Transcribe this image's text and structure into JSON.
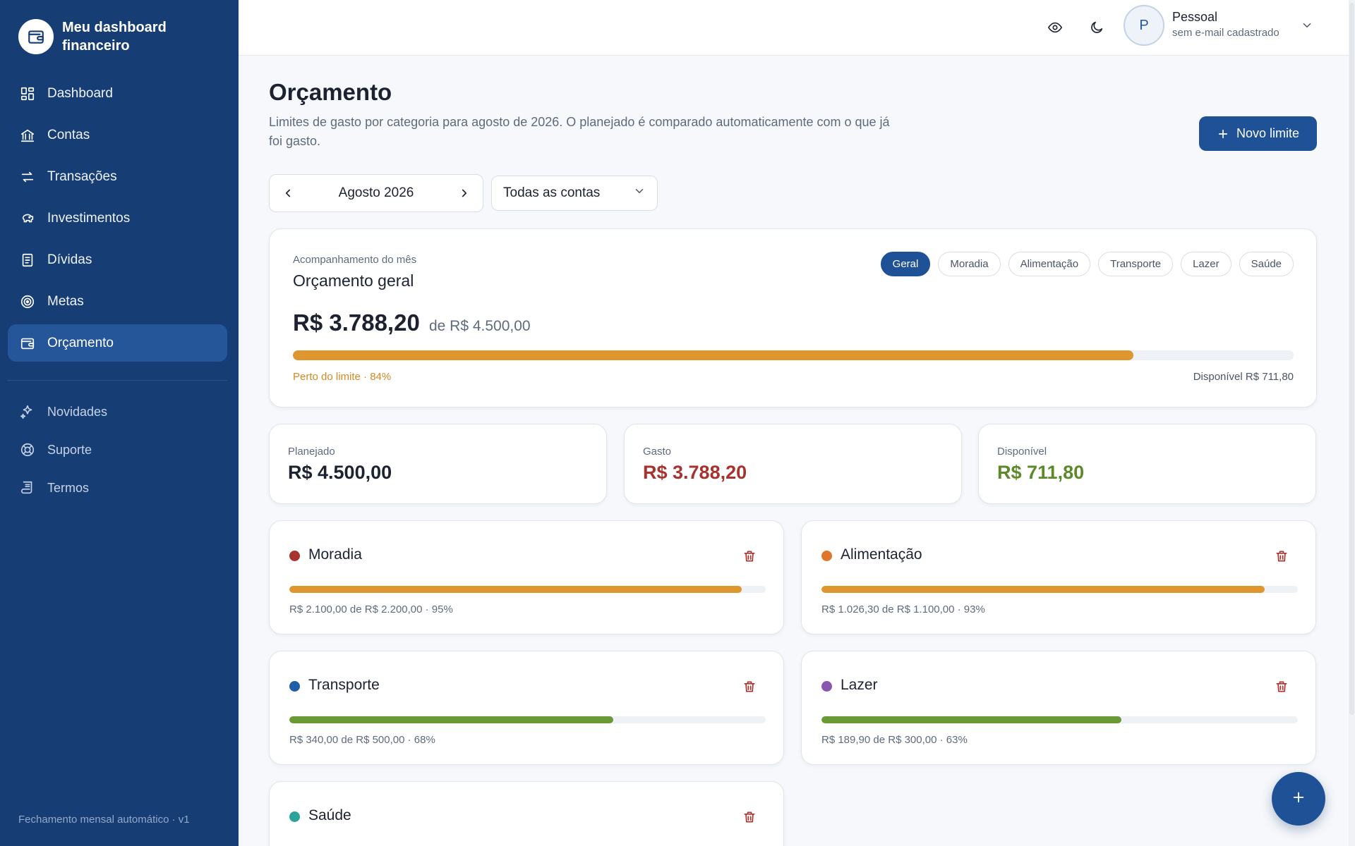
{
  "brand": {
    "title": "Meu dashboard financeiro"
  },
  "sidebar": {
    "items": [
      {
        "label": "Dashboard",
        "icon": "grid-icon"
      },
      {
        "label": "Contas",
        "icon": "bank-icon"
      },
      {
        "label": "Transações",
        "icon": "arrows-icon"
      },
      {
        "label": "Investimentos",
        "icon": "piggy-bank-icon"
      },
      {
        "label": "Dívidas",
        "icon": "receipt-icon"
      },
      {
        "label": "Metas",
        "icon": "target-icon"
      },
      {
        "label": "Orçamento",
        "icon": "wallet-icon",
        "active": true
      }
    ],
    "secondary": [
      {
        "label": "Novidades",
        "icon": "sparkles-icon"
      },
      {
        "label": "Suporte",
        "icon": "lifebuoy-icon"
      },
      {
        "label": "Termos",
        "icon": "scroll-icon"
      }
    ],
    "footer": "Fechamento mensal automático · v1"
  },
  "user": {
    "initial": "P",
    "name": "Pessoal",
    "email": "sem e-mail cadastrado"
  },
  "header": {
    "title": "Orçamento",
    "subtitle": "Limites de gasto por categoria para agosto de 2026. O planejado é comparado automaticamente com o que já foi gasto.",
    "new_button": "Novo limite"
  },
  "filters": {
    "month": "Agosto 2026",
    "account": "Todas as contas"
  },
  "overview": {
    "kicker": "Acompanhamento do mês",
    "title": "Orçamento geral",
    "chips": [
      "Geral",
      "Moradia",
      "Alimentação",
      "Transporte",
      "Lazer",
      "Saúde"
    ],
    "active_chip": "Geral",
    "spent": "R$ 3.788,20",
    "of_planned": "de R$ 4.500,00",
    "progress": 0.84,
    "status": "Perto do limite · 84%",
    "available": "Disponível R$ 711,80",
    "bar_color": "#e0962f"
  },
  "summary": [
    {
      "label": "Planejado",
      "value": "R$ 4.500,00",
      "color": "#1c2230"
    },
    {
      "label": "Gasto",
      "value": "R$ 3.788,20",
      "color": "#a8322d"
    },
    {
      "label": "Disponível",
      "value": "R$ 711,80",
      "color": "#5c8a2b"
    }
  ],
  "categories": [
    {
      "name": "Moradia",
      "dot": "#a8322d",
      "progress": 0.95,
      "bar": "#e0962f",
      "info": "R$ 2.100,00 de R$ 2.200,00 · 95%"
    },
    {
      "name": "Alimentação",
      "dot": "#e0752c",
      "progress": 0.93,
      "bar": "#e0962f",
      "info": "R$ 1.026,30 de R$ 1.100,00 · 93%"
    },
    {
      "name": "Transporte",
      "dot": "#1f5ea8",
      "progress": 0.68,
      "bar": "#6a9a35",
      "info": "R$ 340,00 de R$ 500,00 · 68%"
    },
    {
      "name": "Lazer",
      "dot": "#8a55b0",
      "progress": 0.63,
      "bar": "#6a9a35",
      "info": "R$ 189,90 de R$ 300,00 · 63%"
    },
    {
      "name": "Saúde",
      "dot": "#2aa39a",
      "progress": 0,
      "bar": "#6a9a35",
      "info": ""
    }
  ],
  "colors": {
    "sidebar": "#173d75",
    "accent": "#1f5197",
    "danger": "#a8322d"
  }
}
